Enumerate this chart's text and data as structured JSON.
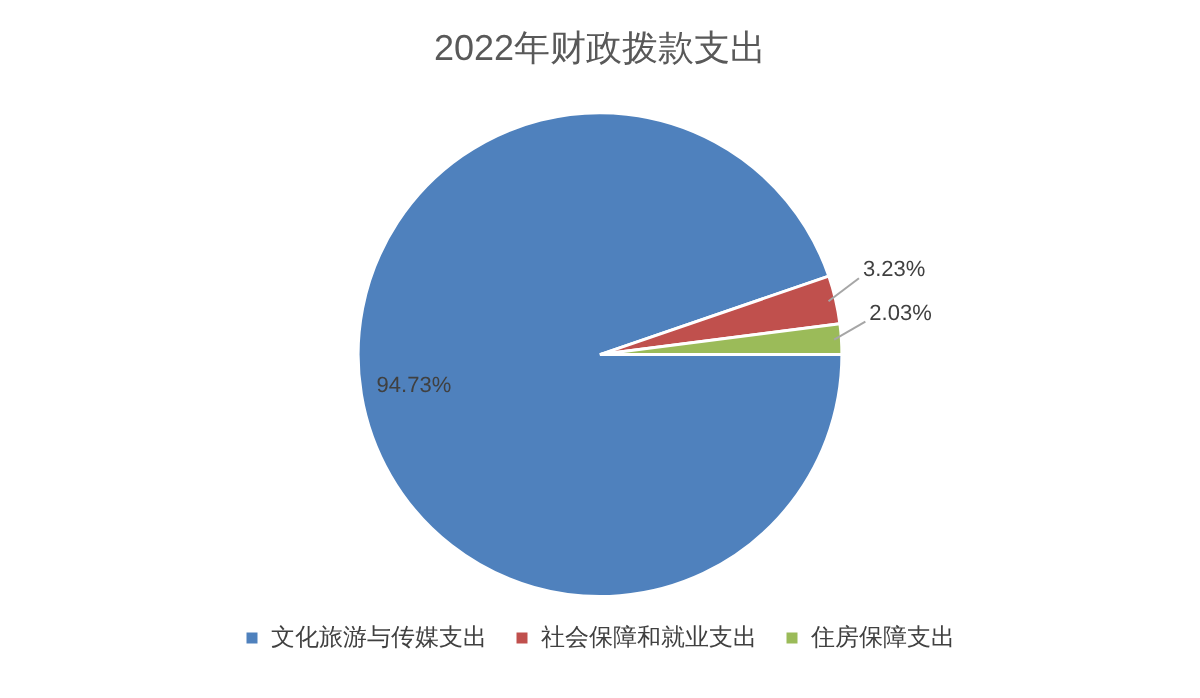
{
  "chart_data": {
    "type": "pie",
    "title": "2022年财政拨款支出",
    "categories": [
      "文化旅游与传媒支出",
      "社会保障和就业支出",
      "住房保障支出"
    ],
    "values": [
      94.73,
      3.23,
      2.03
    ],
    "colors": [
      "#4f81bd",
      "#c0504d",
      "#9bbb59"
    ],
    "value_labels": [
      "94.73%",
      "3.23%",
      "2.03%"
    ],
    "legend": "bottom"
  }
}
